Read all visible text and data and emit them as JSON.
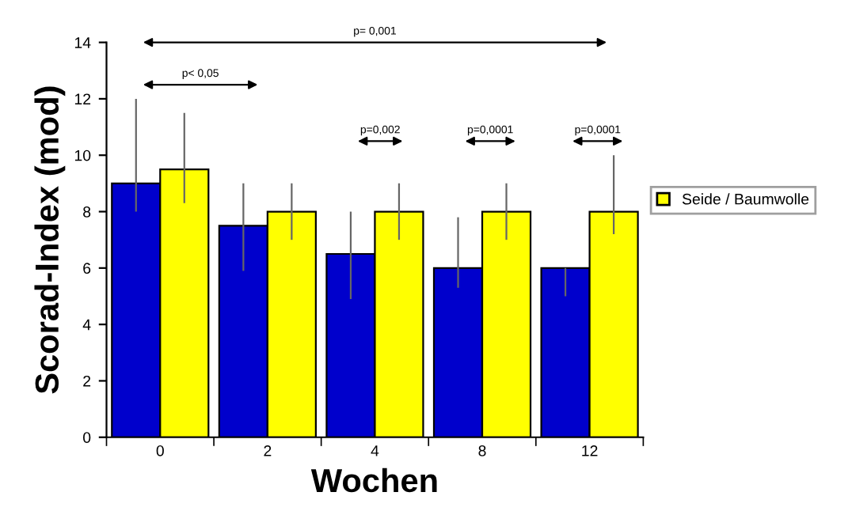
{
  "chart_data": {
    "type": "bar",
    "xlabel": "Wochen",
    "ylabel": "Scorad-Index (mod)",
    "categories": [
      "0",
      "2",
      "4",
      "8",
      "12"
    ],
    "series": [
      {
        "color": "#0000cc",
        "values": [
          9,
          7.5,
          6.5,
          6,
          6
        ],
        "errors": [
          [
            8,
            12
          ],
          [
            5.9,
            9
          ],
          [
            4.9,
            8
          ],
          [
            5.3,
            7.8
          ],
          [
            5,
            6
          ]
        ]
      },
      {
        "name": "Seide / Baumwolle",
        "color": "#ffff00",
        "values": [
          9.5,
          8,
          8,
          8,
          8
        ],
        "errors": [
          [
            8.3,
            11.5
          ],
          [
            7,
            9
          ],
          [
            7,
            9
          ],
          [
            7,
            9
          ],
          [
            7.2,
            10
          ]
        ]
      }
    ],
    "ylim": [
      0,
      14
    ],
    "yticks": [
      0,
      2,
      4,
      6,
      8,
      10,
      12,
      14
    ],
    "grid": false,
    "legend": "right",
    "annotations": [
      "p= 0,001",
      "p< 0,05",
      "p=0,002",
      "p=0,0001",
      "p=0,0001"
    ]
  }
}
